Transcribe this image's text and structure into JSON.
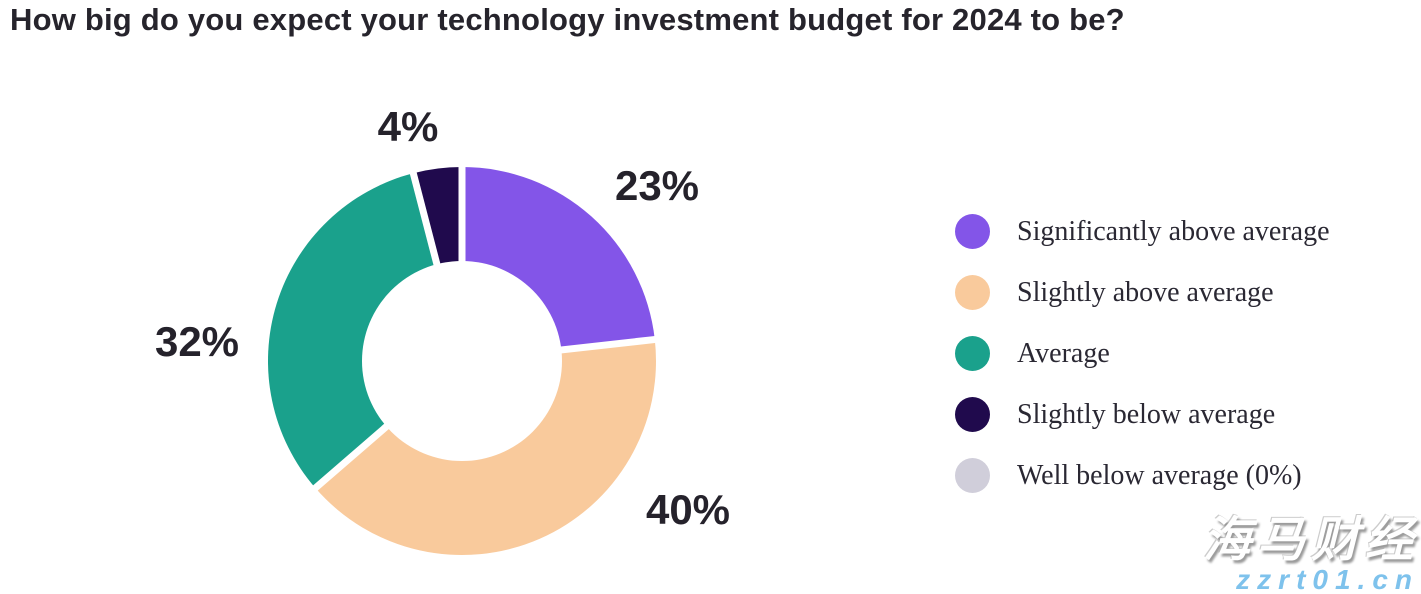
{
  "title": "How big do you expect your technology investment budget for 2024 to be?",
  "chart_data": {
    "type": "pie",
    "subtype": "donut",
    "title": "How big do you expect your technology investment budget for 2024 to be?",
    "start_angle_deg": 0,
    "direction": "clockwise",
    "legend_position": "right",
    "slices": [
      {
        "label": "Significantly above average",
        "value": 23,
        "display": "23%",
        "color": "#8355e8"
      },
      {
        "label": "Slightly above average",
        "value": 40,
        "display": "40%",
        "color": "#f9ca9c"
      },
      {
        "label": "Average",
        "value": 32,
        "display": "32%",
        "color": "#1aa18c"
      },
      {
        "label": "Slightly below average",
        "value": 4,
        "display": "4%",
        "color": "#200a4d"
      },
      {
        "label": "Well below average (0%)",
        "value": 0,
        "display": "0%",
        "color": "#d0ceda"
      }
    ]
  },
  "watermark": {
    "line1": "海马财经",
    "line2": "zzrt01.cn"
  }
}
